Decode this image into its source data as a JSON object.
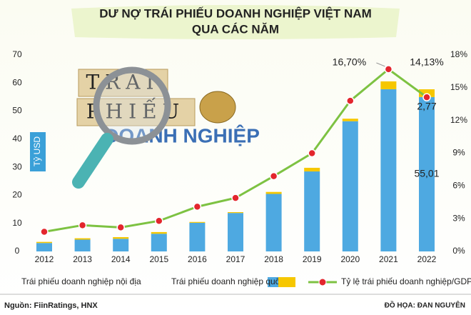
{
  "chart_data": {
    "type": "bar",
    "title": "DƯ NỢ TRÁI PHIẾU DOANH NGHIỆP VIỆT NAM",
    "subtitle": "QUA CÁC NĂM",
    "y_label": "Tỷ USD",
    "illustration_text": [
      "TRÁI",
      "PHIẾU",
      "DOANH NGHIỆP"
    ],
    "categories": [
      "2012",
      "2013",
      "2014",
      "2015",
      "2016",
      "2017",
      "2018",
      "2019",
      "2020",
      "2021",
      "2022"
    ],
    "series": [
      {
        "name": "Trái phiếu doanh nghiệp nội địa",
        "color": "#4ea9e1",
        "values": [
          3.0,
          4.2,
          4.5,
          6.3,
          10.2,
          13.7,
          20.5,
          28.5,
          46.4,
          57.8,
          55.01
        ],
        "value_labels": [
          null,
          null,
          null,
          null,
          null,
          null,
          null,
          null,
          null,
          null,
          "55,01"
        ]
      },
      {
        "name": "Trái phiếu doanh nghiệp quốc tế",
        "color": "#f6c700",
        "values": [
          0.4,
          0.5,
          0.6,
          0.6,
          0.3,
          0.3,
          0.7,
          1.3,
          0.9,
          2.8,
          2.77
        ],
        "value_labels": [
          null,
          null,
          null,
          null,
          null,
          null,
          null,
          null,
          null,
          null,
          "2,77"
        ]
      },
      {
        "name": "Tỷ lệ trái phiếu doanh nghiệp/GDP",
        "color": "#7dc242",
        "type": "line",
        "axis": "y2",
        "marker_color": "#e3262d",
        "values": [
          1.8,
          2.4,
          2.2,
          2.8,
          4.1,
          4.9,
          6.9,
          9.0,
          13.8,
          16.7,
          14.13
        ],
        "value_labels": [
          null,
          null,
          null,
          null,
          null,
          null,
          null,
          null,
          null,
          "16,70%",
          "14,13%"
        ]
      }
    ],
    "ylim": [
      0,
      70
    ],
    "yticks": [
      0,
      10,
      20,
      30,
      40,
      50,
      60,
      70
    ],
    "y2lim": [
      0,
      18
    ],
    "y2ticks": [
      {
        "value": 0,
        "label": "0%"
      },
      {
        "value": 3,
        "label": "3%"
      },
      {
        "value": 6,
        "label": "6%"
      },
      {
        "value": 9,
        "label": "9%"
      },
      {
        "value": 12,
        "label": "12%"
      },
      {
        "value": 15,
        "label": "15%"
      },
      {
        "value": 18,
        "label": "18%"
      }
    ],
    "grid": false,
    "source": "Nguồn: FiinRatings, HNX",
    "credit": "ĐỒ HỌA: ĐAN NGUYÊN"
  }
}
